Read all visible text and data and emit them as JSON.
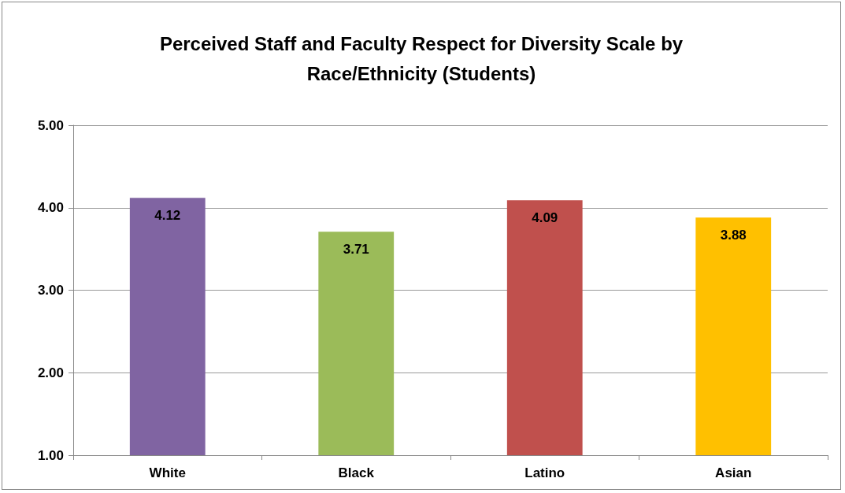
{
  "chart_data": {
    "type": "bar",
    "title": "Perceived Staff and Faculty Respect for Diversity Scale by\nRace/Ethnicity (Students)",
    "categories": [
      "White",
      "Black",
      "Latino",
      "Asian"
    ],
    "values": [
      4.12,
      3.71,
      4.09,
      3.88
    ],
    "colors": [
      "#8064a2",
      "#9bbb59",
      "#c0504d",
      "#ffc000"
    ],
    "ylim": [
      1,
      5
    ],
    "yticks": [
      {
        "value": 1,
        "label": "1.00"
      },
      {
        "value": 2,
        "label": "2.00"
      },
      {
        "value": 3,
        "label": "3.00"
      },
      {
        "value": 4,
        "label": "4.00"
      },
      {
        "value": 5,
        "label": "5.00"
      }
    ],
    "grid": "y",
    "data_labels": true
  }
}
